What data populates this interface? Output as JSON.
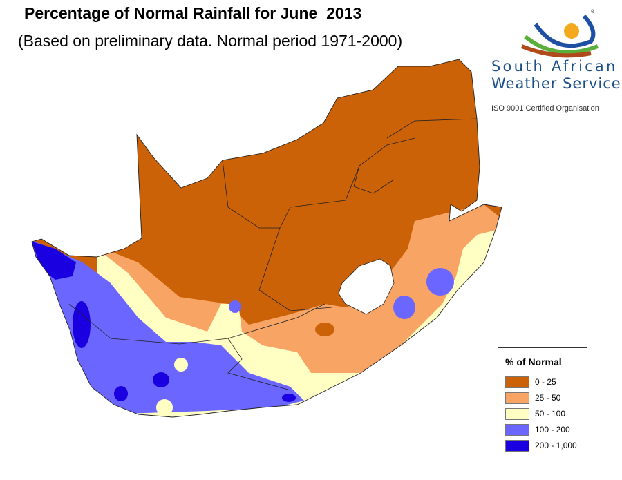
{
  "header": {
    "title": "Percentage of Normal Rainfall for June  2013",
    "subtitle": "(Based on preliminary data. Normal period 1971-2000)"
  },
  "logo": {
    "line1": "South  African",
    "line2": "Weather Service",
    "certification": "ISO 9001 Certified Organisation",
    "registered_mark": "®"
  },
  "legend": {
    "title": "% of Normal",
    "items": [
      {
        "label": "0 - 25",
        "color": "#cc6208"
      },
      {
        "label": "25 - 50",
        "color": "#f7a464"
      },
      {
        "label": "50 - 100",
        "color": "#ffffc4"
      },
      {
        "label": "100 - 200",
        "color": "#6a66ff"
      },
      {
        "label": "200 - 1,000",
        "color": "#1a00e0"
      }
    ]
  }
}
